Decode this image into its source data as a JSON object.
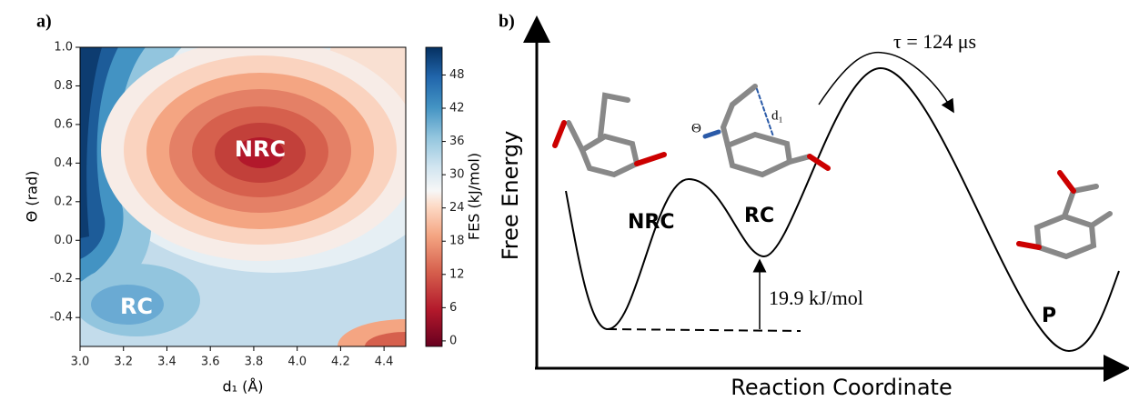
{
  "chart_data": [
    {
      "type": "contour",
      "panel_label": "a)",
      "xlabel": "d₁ (Å)",
      "ylabel": "Θ (rad)",
      "xlim": [
        3.0,
        4.5
      ],
      "xticks": [
        {
          "value": 3,
          "label": "3.0"
        },
        3.2,
        3.4,
        3.6,
        3.8,
        {
          "value": 4,
          "label": "4.0"
        },
        4.2,
        4.4
      ],
      "ylim": [
        -0.55,
        1.0
      ],
      "yticks": [
        -0.4,
        -0.2,
        {
          "value": 0,
          "label": "0.0"
        },
        0.2,
        0.4,
        0.6,
        0.8,
        {
          "value": 1,
          "label": "1.0"
        }
      ],
      "colorbar": {
        "label": "FES (kJ/mol)",
        "lim": [
          -1,
          53
        ],
        "ticks": [
          0,
          6,
          12,
          18,
          24,
          30,
          36,
          42,
          48
        ]
      },
      "annotations": [
        "NRC",
        "RC"
      ]
    },
    {
      "type": "energy-diagram",
      "panel_label": "b)",
      "ylabel": "Free Energy",
      "xlabel": "Reaction Coordinate",
      "states": [
        "NRC",
        "RC",
        "P"
      ],
      "barrier_label": "19.9 kJ/mol",
      "rate_label": "τ = 124 μs",
      "molecule_labels": [
        "Θ",
        "d₁"
      ]
    }
  ]
}
